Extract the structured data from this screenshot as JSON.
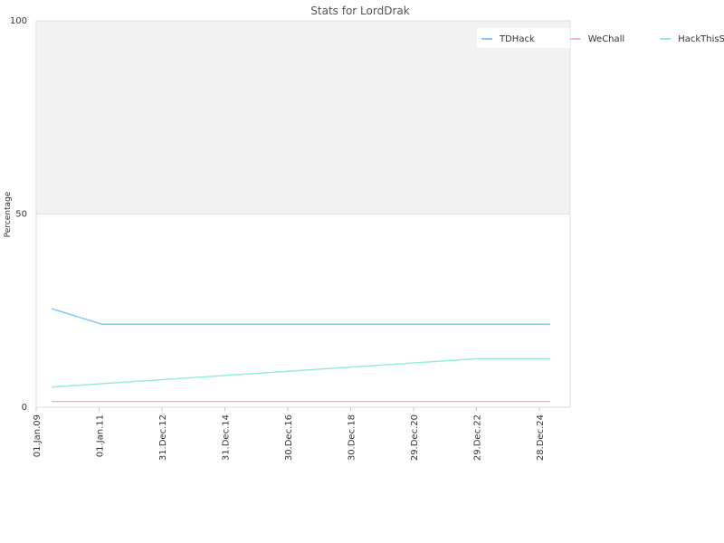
{
  "chart_data": {
    "type": "line",
    "title": "Stats for LordDrak",
    "y_label": "Percentage",
    "x": [
      "2009-07-01",
      "2011-02-01",
      "2023-02-01",
      "2025-05-01"
    ],
    "series": [
      {
        "name": "TDHack",
        "color": "#8cc7ec",
        "values": [
          25.5,
          21.5,
          21.5,
          21.5
        ]
      },
      {
        "name": "WeChall",
        "color": "#f4b6c8",
        "values": [
          1.5,
          1.5,
          1.5,
          1.5
        ]
      },
      {
        "name": "HackThisSite",
        "color": "#98ecd0",
        "values": [
          5.2,
          6.1,
          12.6,
          12.6
        ]
      }
    ],
    "xlim": [
      "2009-01-01",
      "2025-12-20"
    ],
    "xticks": [
      {
        "value": "2009-01-01",
        "label": "01.Jan.09"
      },
      {
        "value": "2011-01-01",
        "label": "01.Jan.11"
      },
      {
        "value": "2012-12-31",
        "label": "31.Dec.12"
      },
      {
        "value": "2014-12-31",
        "label": "31.Dec.14"
      },
      {
        "value": "2016-12-30",
        "label": "30.Dec.16"
      },
      {
        "value": "2018-12-30",
        "label": "30.Dec.18"
      },
      {
        "value": "2020-12-29",
        "label": "29.Dec.20"
      },
      {
        "value": "2022-12-29",
        "label": "29.Dec.22"
      },
      {
        "value": "2024-12-28",
        "label": "28.Dec.24"
      }
    ],
    "ylim": [
      0,
      100
    ],
    "yticks": [
      0,
      50,
      100
    ],
    "grid": true,
    "bands": [
      {
        "from": 50,
        "to": 100,
        "color": "#f2f2f2"
      }
    ],
    "legend": "top-right"
  }
}
